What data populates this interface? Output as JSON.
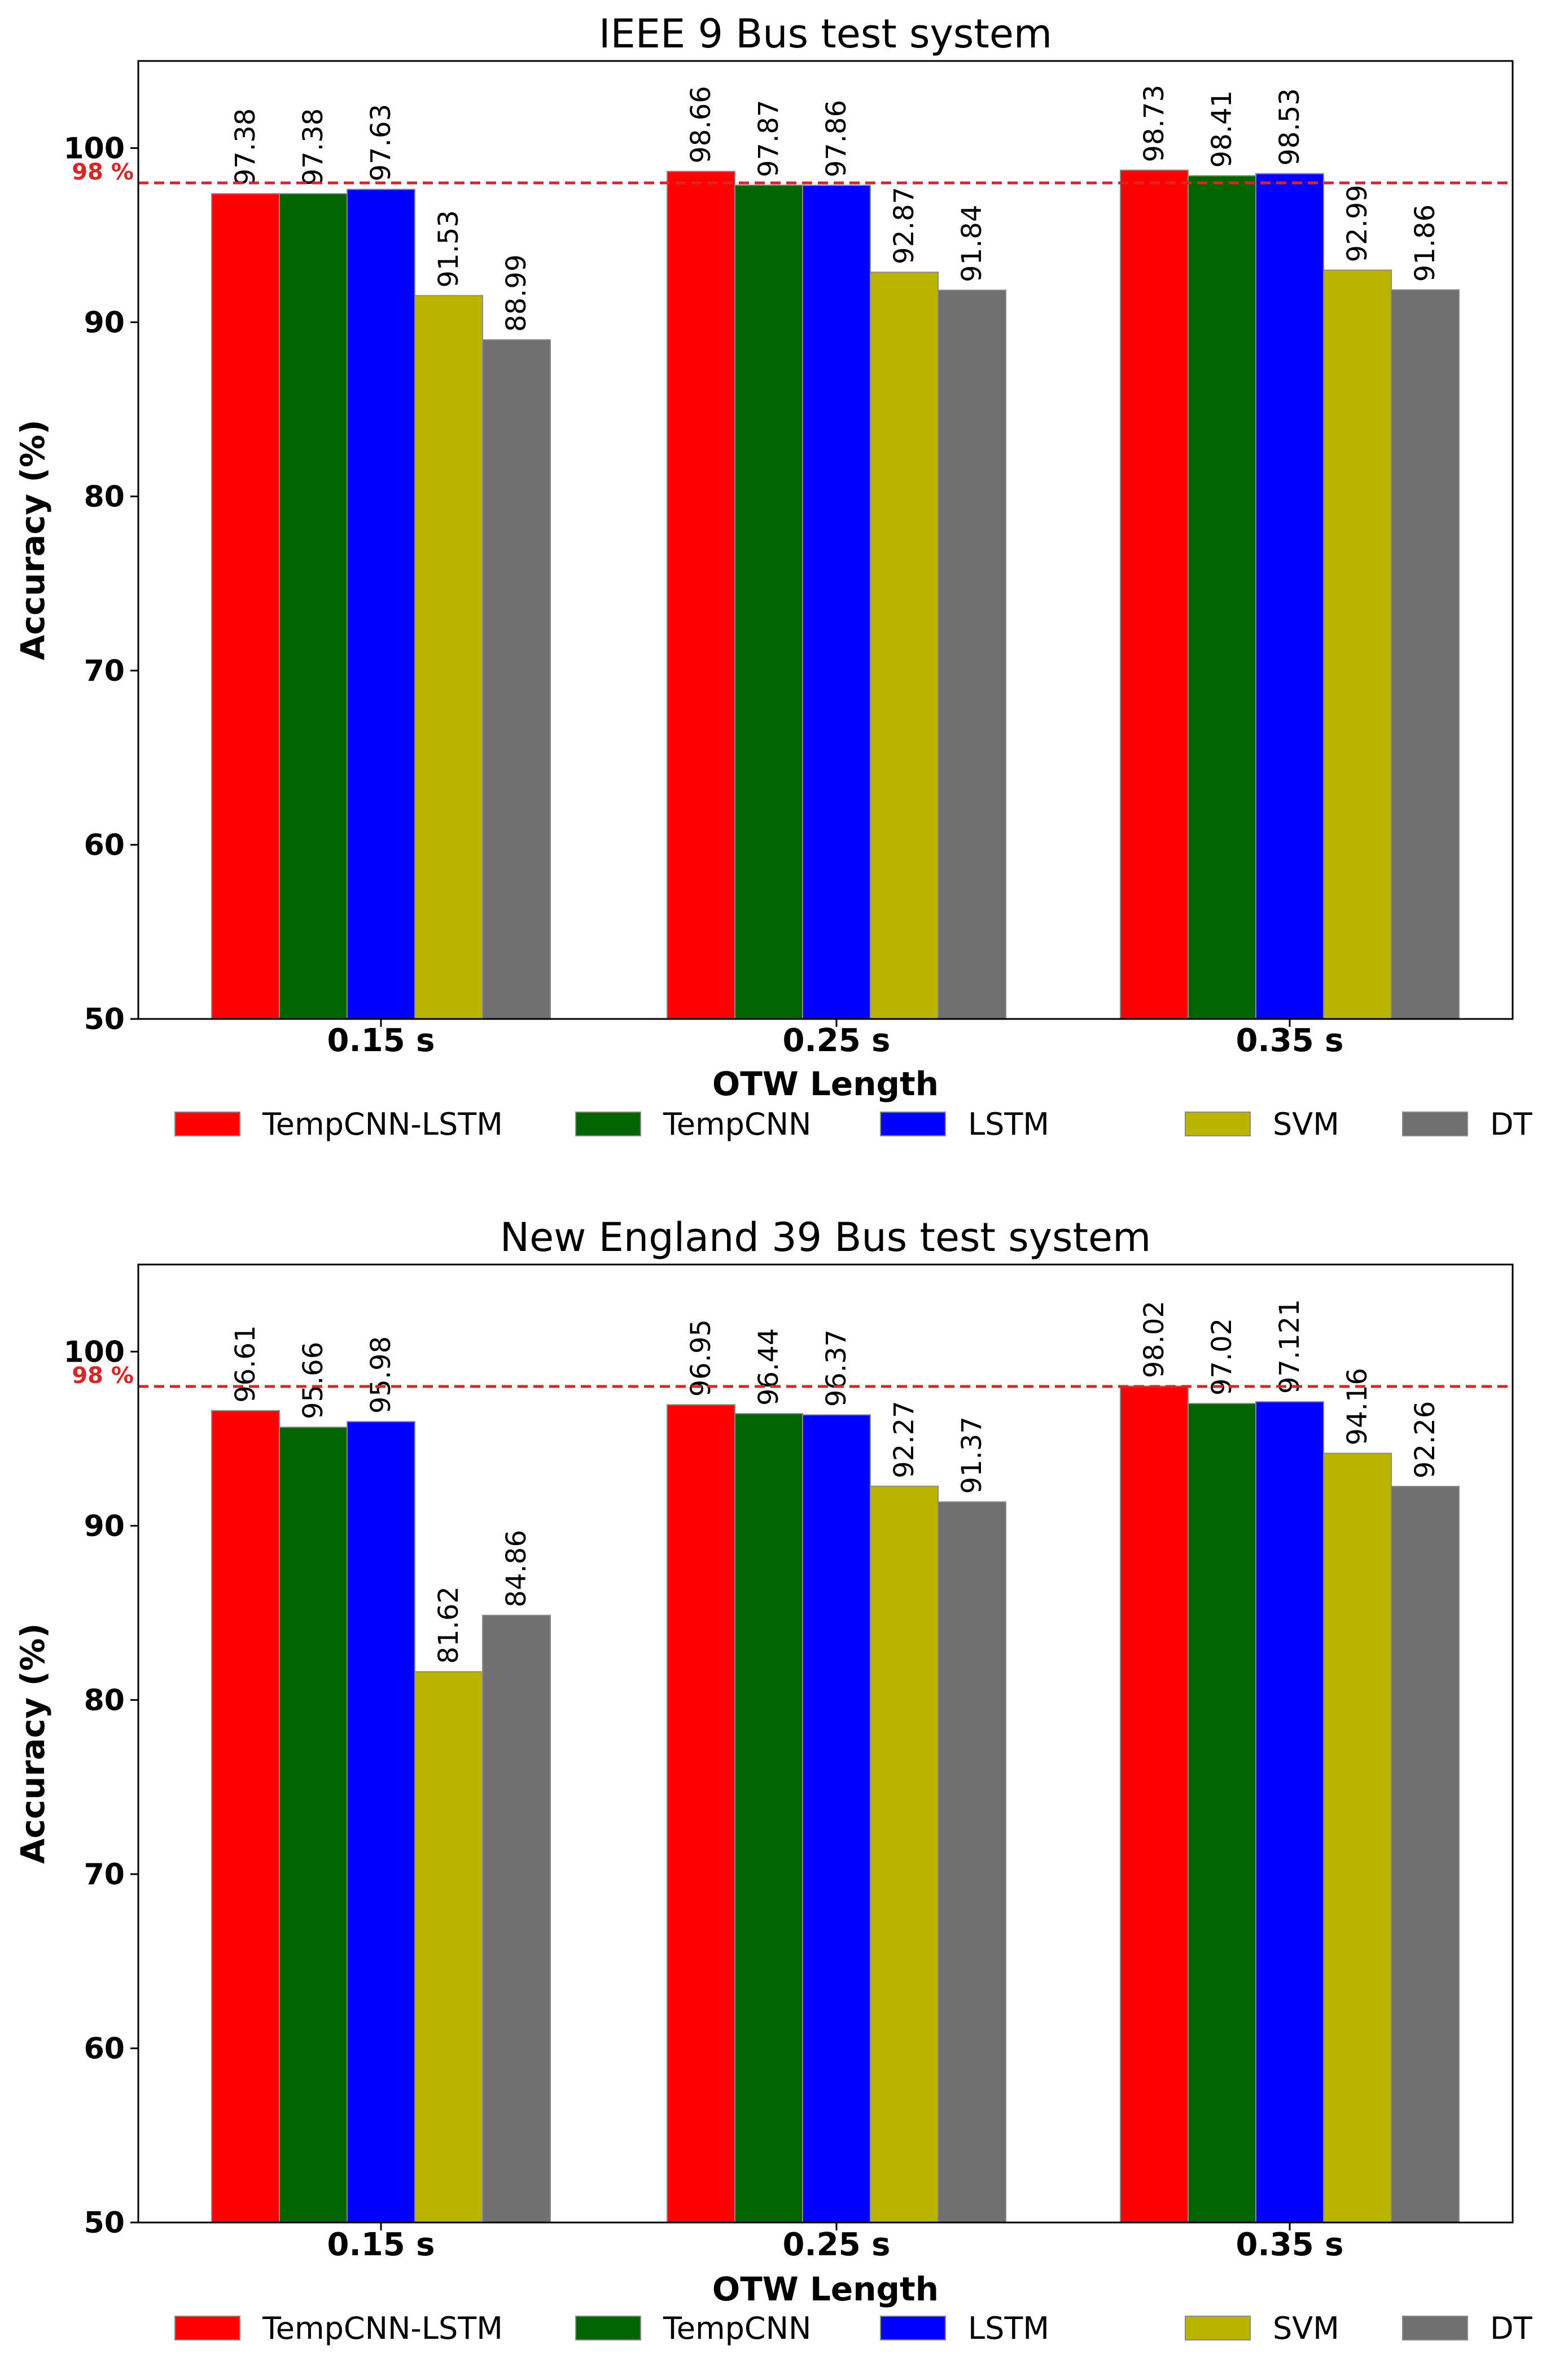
{
  "chart_data": [
    {
      "type": "bar",
      "title": "IEEE 9 Bus test system",
      "xlabel": "OTW Length",
      "ylabel": "Accuracy (%)",
      "ylim": [
        50,
        105
      ],
      "yticks": [
        50,
        60,
        70,
        80,
        90,
        100
      ],
      "categories": [
        "0.15 s",
        "0.25 s",
        "0.35 s"
      ],
      "reference_line": {
        "value": 98,
        "label": "98 %",
        "color": "#d62728"
      },
      "series": [
        {
          "name": "TempCNN-LSTM",
          "color": "#ff0000",
          "values": [
            97.38,
            98.66,
            98.73
          ],
          "labels": [
            "97.38",
            "98.66",
            "98.73"
          ]
        },
        {
          "name": "TempCNN",
          "color": "#006400",
          "values": [
            97.38,
            97.87,
            98.41
          ],
          "labels": [
            "97.38",
            "97.87",
            "98.41"
          ]
        },
        {
          "name": "LSTM",
          "color": "#0000ff",
          "values": [
            97.63,
            97.86,
            98.53
          ],
          "labels": [
            "97.63",
            "97.86",
            "98.53"
          ]
        },
        {
          "name": "SVM",
          "color": "#b8b400",
          "values": [
            91.53,
            92.87,
            92.99
          ],
          "labels": [
            "91.53",
            "92.87",
            "92.99"
          ]
        },
        {
          "name": "DT",
          "color": "#707070",
          "values": [
            88.99,
            91.84,
            91.86
          ],
          "labels": [
            "88.99",
            "91.84",
            "91.86"
          ]
        }
      ],
      "legend_position": "bottom"
    },
    {
      "type": "bar",
      "title": "New England 39 Bus test system",
      "xlabel": "OTW Length",
      "ylabel": "Accuracy (%)",
      "ylim": [
        50,
        105
      ],
      "yticks": [
        50,
        60,
        70,
        80,
        90,
        100
      ],
      "categories": [
        "0.15 s",
        "0.25 s",
        "0.35 s"
      ],
      "reference_line": {
        "value": 98,
        "label": "98 %",
        "color": "#d62728"
      },
      "series": [
        {
          "name": "TempCNN-LSTM",
          "color": "#ff0000",
          "values": [
            96.61,
            96.95,
            98.02
          ],
          "labels": [
            "96.61",
            "96.95",
            "98.02"
          ]
        },
        {
          "name": "TempCNN",
          "color": "#006400",
          "values": [
            95.66,
            96.44,
            97.02
          ],
          "labels": [
            "95.66",
            "96.44",
            "97.02"
          ]
        },
        {
          "name": "LSTM",
          "color": "#0000ff",
          "values": [
            95.98,
            96.37,
            97.121
          ],
          "labels": [
            "95.98",
            "96.37",
            "97.121"
          ]
        },
        {
          "name": "SVM",
          "color": "#b8b400",
          "values": [
            81.62,
            92.27,
            94.16
          ],
          "labels": [
            "81.62",
            "92.27",
            "94.16"
          ]
        },
        {
          "name": "DT",
          "color": "#707070",
          "values": [
            84.86,
            91.37,
            92.26
          ],
          "labels": [
            "84.86",
            "91.37",
            "92.26"
          ]
        }
      ],
      "legend_position": "bottom"
    }
  ]
}
